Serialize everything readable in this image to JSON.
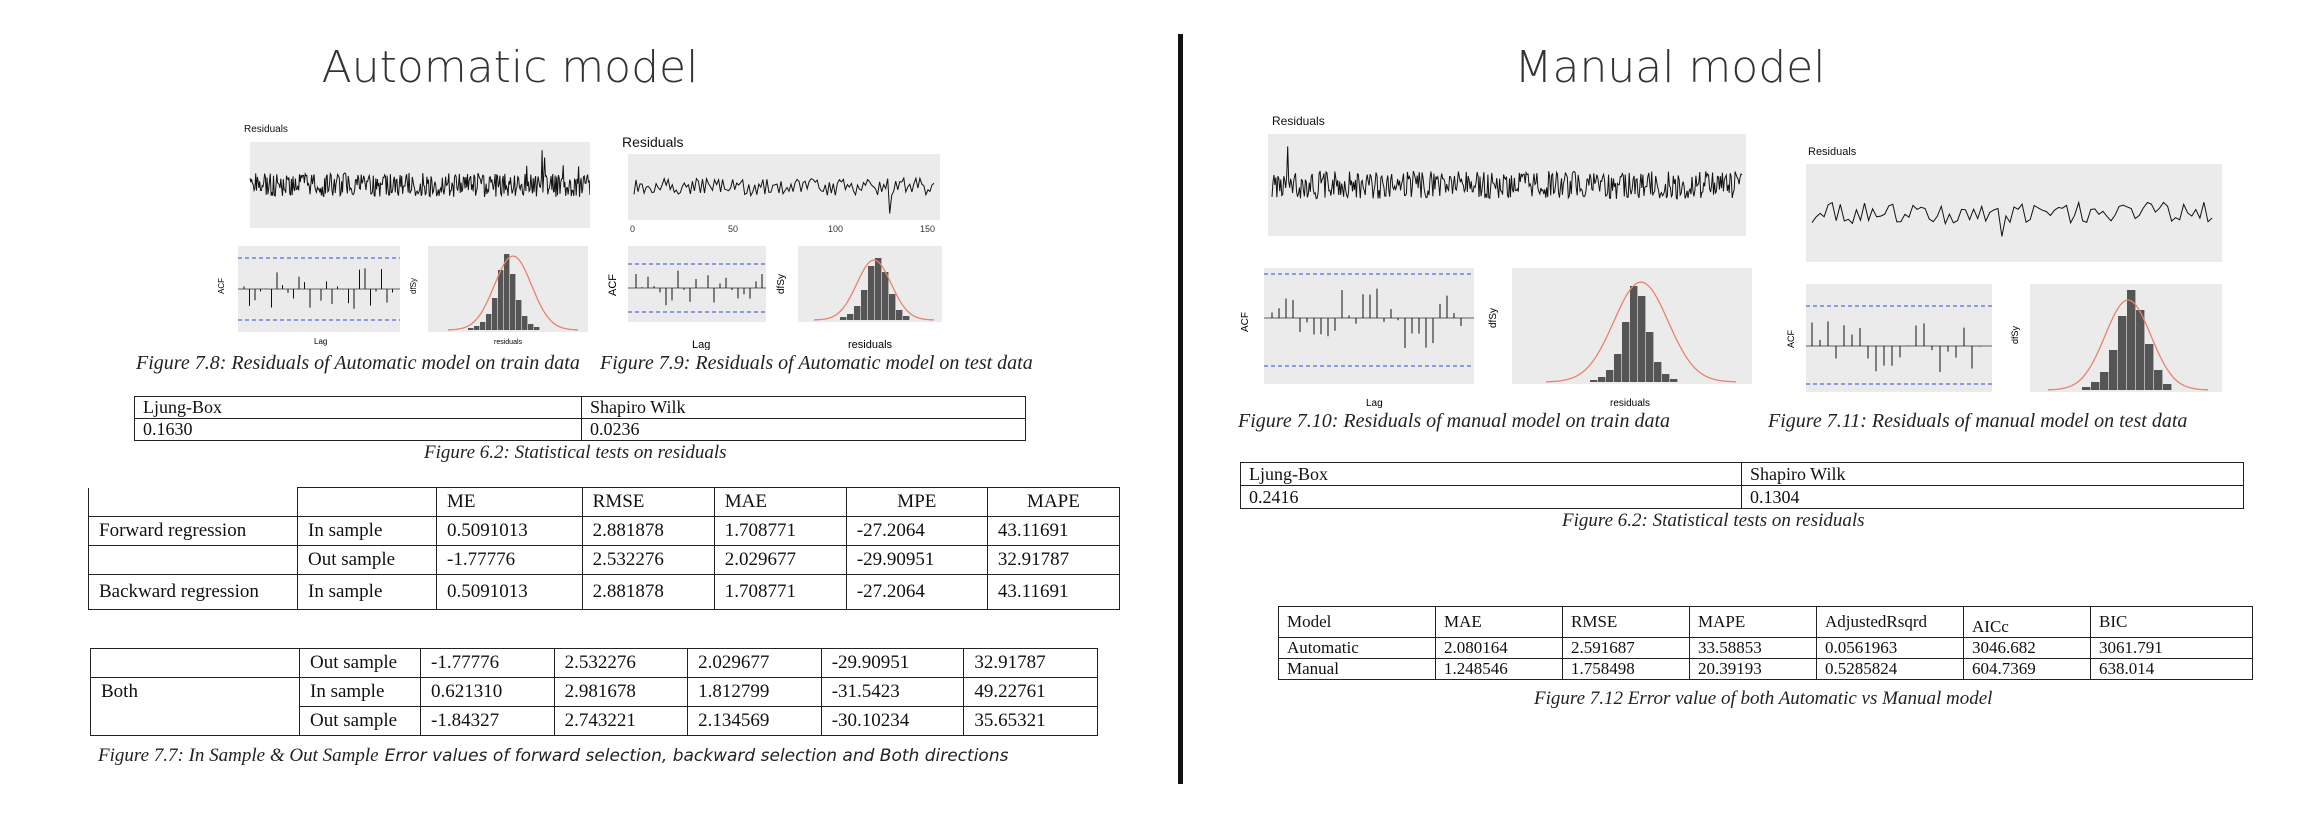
{
  "left": {
    "title": "Automatic model",
    "train_plot": {
      "title": "Residuals",
      "acf_label": "ACF",
      "dfsy_label": "dfSy",
      "lag_label": "Lag",
      "resid_label": "residuals"
    },
    "test_plot": {
      "title": "Residuals",
      "acf_label": "ACF",
      "dfsy_label": "dfSy",
      "lag_label": "Lag",
      "resid_label": "residuals"
    },
    "caption_train": "Figure 7.8: Residuals of Automatic model on train data",
    "caption_test": "Figure 7.9: Residuals of Automatic model on test data",
    "stat_table": {
      "headers": [
        "Ljung-Box",
        "Shapiro Wilk"
      ],
      "values": [
        "0.1630",
        "0.0236"
      ]
    },
    "stat_caption": "Figure 6.2: Statistical tests on residuals",
    "error_table1": {
      "headers": [
        "",
        "",
        "ME",
        "RMSE",
        "MAE",
        "MPE",
        "MAPE"
      ],
      "rows": [
        [
          "Forward regression",
          "In sample",
          "0.5091013",
          "2.881878",
          "1.708771",
          "-27.2064",
          "43.11691"
        ],
        [
          "",
          "Out sample",
          "-1.77776",
          "2.532276",
          "2.029677",
          "-29.90951",
          "32.91787"
        ],
        [
          "Backward regression",
          "In sample",
          "0.5091013",
          "2.881878",
          "1.708771",
          "-27.2064",
          "43.11691"
        ]
      ]
    },
    "error_table2": {
      "rows": [
        [
          "",
          "Out sample",
          "-1.77776",
          "2.532276",
          "2.029677",
          "-29.90951",
          "32.91787"
        ],
        [
          "Both",
          "In sample",
          "0.621310",
          "2.981678",
          "1.812799",
          "-31.5423",
          "49.22761"
        ],
        [
          "",
          "Out sample",
          "-1.84327",
          "2.743221",
          "2.134569",
          "-30.10234",
          "35.65321"
        ]
      ]
    },
    "error_caption_a": "Figure 7.7: In Sample & Out Sample",
    "error_caption_b": "Error values of forward selection, backward selection and Both directions"
  },
  "right": {
    "title": "Manual model",
    "train_plot": {
      "title": "Residuals",
      "acf_label": "ACF",
      "dfsy_label": "dfSy",
      "lag_label": "Lag",
      "resid_label": "residuals"
    },
    "test_plot": {
      "title": "Residuals",
      "acf_label": "ACF",
      "dfsy_label": "dfSy"
    },
    "caption_train": "Figure 7.10: Residuals of manual model on train data",
    "caption_test": "Figure 7.11: Residuals of manual model on test  data",
    "stat_table": {
      "headers": [
        "Ljung-Box",
        "Shapiro Wilk"
      ],
      "values": [
        "0.2416",
        "0.1304"
      ]
    },
    "stat_caption": "Figure 6.2: Statistical tests on residuals",
    "compare_table": {
      "headers": [
        "Model",
        "MAE",
        "RMSE",
        "MAPE",
        "AdjustedRsqrd",
        "AICc",
        "BIC"
      ],
      "rows": [
        [
          "Automatic",
          "2.080164",
          "2.591687",
          "33.58853",
          "0.0561963",
          "3046.682",
          "3061.791"
        ],
        [
          "Manual",
          "1.248546",
          "1.758498",
          "20.39193",
          "0.5285824",
          "604.7369",
          "638.014"
        ]
      ]
    },
    "compare_caption": "Figure 7.12 Error value of both Automatic vs Manual model"
  },
  "colors": {
    "plot_bg": "#ebebeb",
    "acf_band": "#3344dd",
    "density": "#e8836e",
    "bars": "#555555"
  }
}
